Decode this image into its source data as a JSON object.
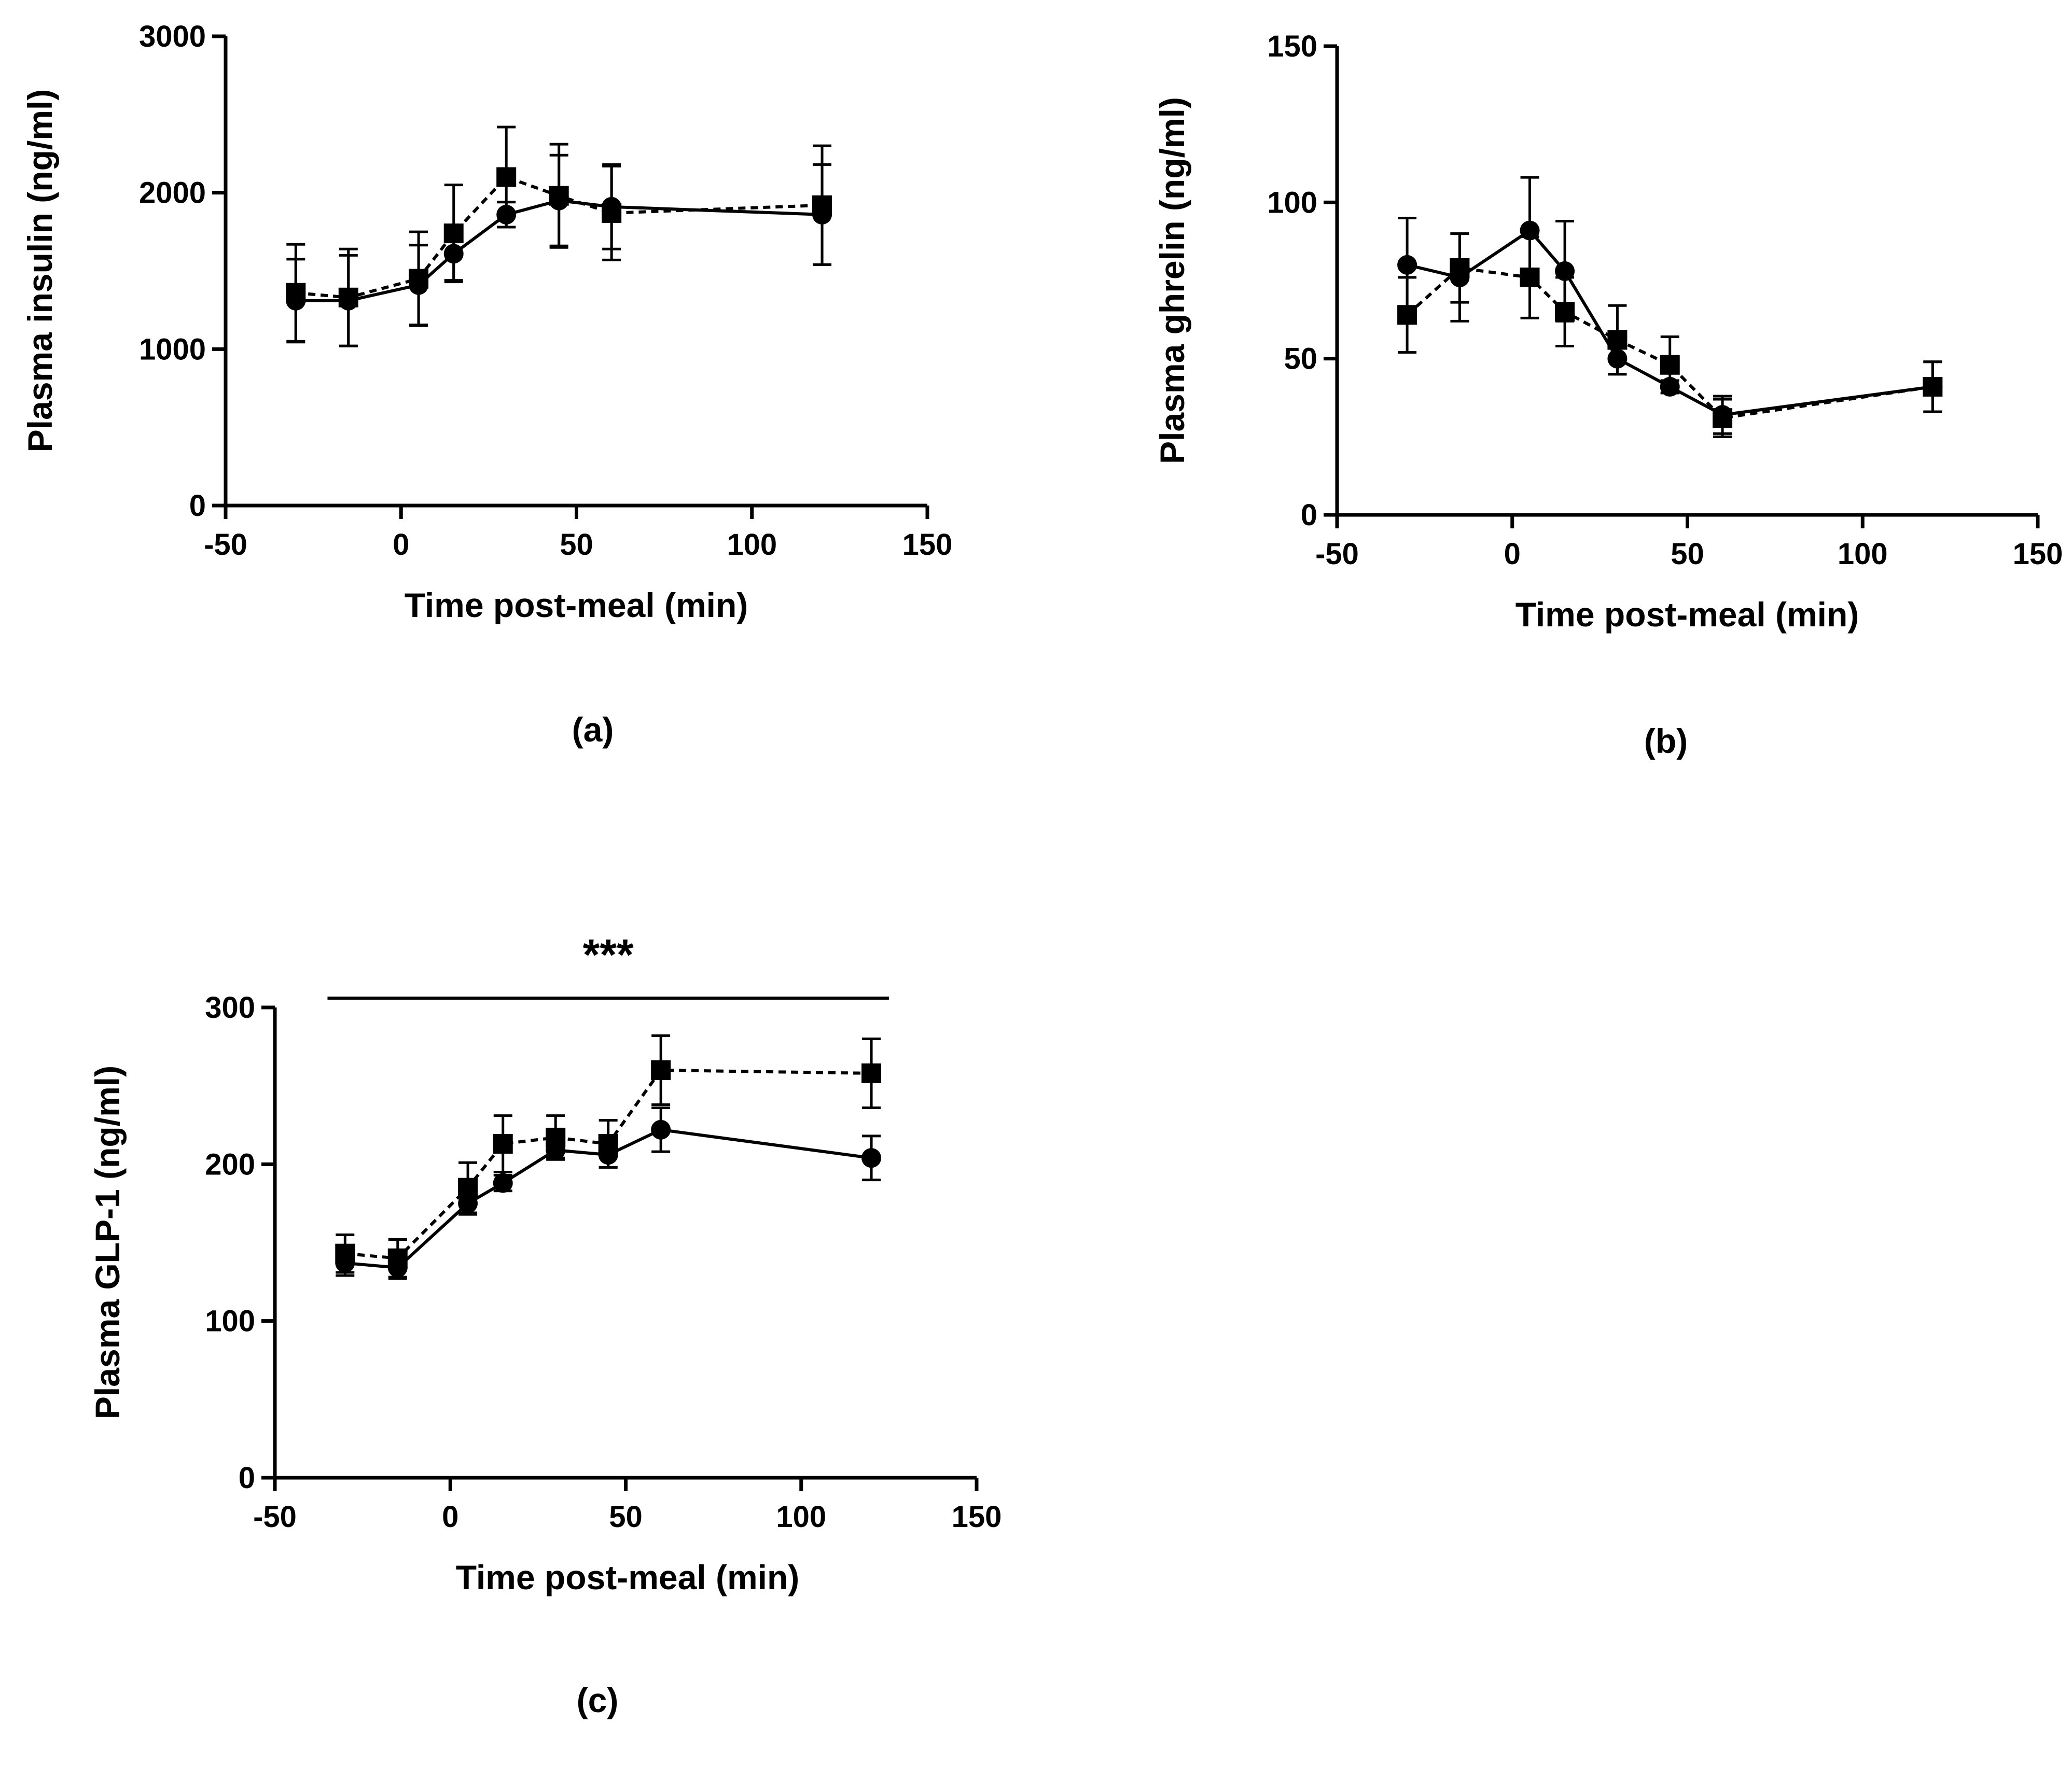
{
  "figure_labels": {
    "significance": "***"
  },
  "chart_data": [
    {
      "id": "a",
      "type": "line",
      "panel_label": "(a)",
      "xlabel": "Time post-meal (min)",
      "ylabel": "Plasma insulin (ng/ml)",
      "xlim": [
        -50,
        150
      ],
      "ylim": [
        0,
        3000
      ],
      "xticks": [
        -50,
        0,
        50,
        100,
        150
      ],
      "yticks": [
        0,
        1000,
        2000,
        3000
      ],
      "x": [
        -30,
        -15,
        5,
        15,
        30,
        45,
        60,
        120
      ],
      "series": [
        {
          "name": "circle-solid",
          "marker": "circle",
          "line": "solid",
          "values": [
            1310,
            1310,
            1410,
            1610,
            1860,
            1950,
            1910,
            1860
          ],
          "errors": [
            265,
            290,
            255,
            170,
            80,
            290,
            270,
            320
          ]
        },
        {
          "name": "square-dashed",
          "marker": "square",
          "line": "dashed",
          "values": [
            1360,
            1330,
            1450,
            1740,
            2100,
            1980,
            1870,
            1920
          ],
          "errors": [
            310,
            310,
            300,
            310,
            320,
            330,
            300,
            380
          ]
        }
      ]
    },
    {
      "id": "b",
      "type": "line",
      "panel_label": "(b)",
      "xlabel": "Time post-meal (min)",
      "ylabel": "Plasma ghrelin (ng/ml)",
      "xlim": [
        -50,
        150
      ],
      "ylim": [
        0,
        150
      ],
      "xticks": [
        -50,
        0,
        50,
        100,
        150
      ],
      "yticks": [
        0,
        50,
        100,
        150
      ],
      "x": [
        -30,
        -15,
        5,
        15,
        30,
        45,
        60,
        120
      ],
      "series": [
        {
          "name": "circle-solid",
          "marker": "circle",
          "line": "solid",
          "values": [
            80,
            76,
            91,
            78,
            50,
            41,
            32,
            41
          ],
          "errors": [
            15,
            14,
            17,
            16,
            5,
            2,
            6,
            8
          ]
        },
        {
          "name": "square-dashed",
          "marker": "square",
          "line": "dashed",
          "values": [
            64,
            79,
            76,
            65,
            56,
            48,
            31,
            41
          ],
          "errors": [
            12,
            11,
            13,
            11,
            11,
            9,
            6,
            8
          ]
        }
      ]
    },
    {
      "id": "c",
      "type": "line",
      "panel_label": "(c)",
      "xlabel": "Time post-meal (min)",
      "ylabel": "Plasma GLP-1 (ng/ml)",
      "xlim": [
        -50,
        150
      ],
      "ylim": [
        0,
        300
      ],
      "xticks": [
        -50,
        0,
        50,
        100,
        150
      ],
      "yticks": [
        0,
        100,
        200,
        300
      ],
      "x": [
        -30,
        -15,
        5,
        15,
        30,
        45,
        60,
        120
      ],
      "series": [
        {
          "name": "circle-solid",
          "marker": "circle",
          "line": "solid",
          "values": [
            137,
            134,
            175,
            188,
            209,
            206,
            222,
            204
          ],
          "errors": [
            8,
            7,
            7,
            5,
            5,
            8,
            14,
            14
          ]
        },
        {
          "name": "square-dashed",
          "marker": "square",
          "line": "dashed",
          "values": [
            143,
            140,
            185,
            213,
            217,
            213,
            260,
            258
          ],
          "errors": [
            12,
            12,
            16,
            18,
            14,
            15,
            22,
            22
          ]
        }
      ],
      "significance_bar": {
        "x_start": -35,
        "x_end": 125,
        "label": "***"
      }
    }
  ]
}
